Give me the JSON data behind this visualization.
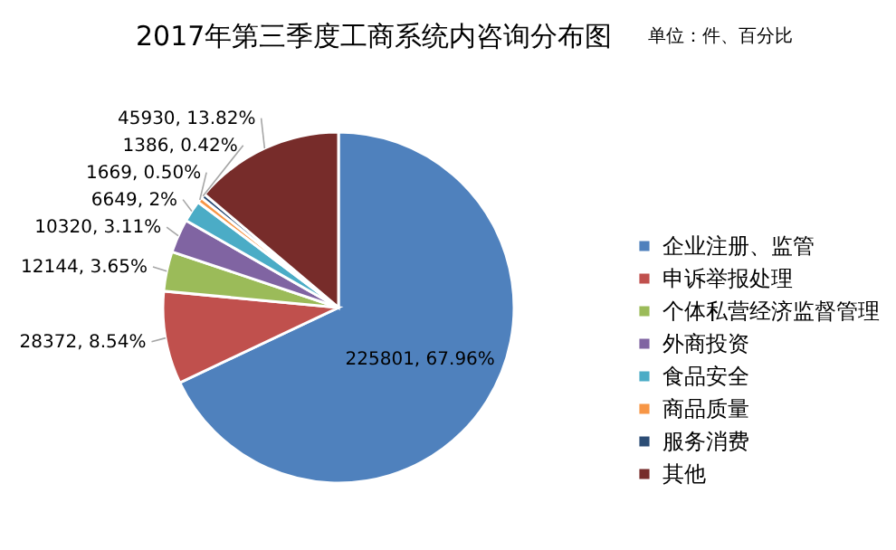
{
  "chart_data": {
    "type": "pie",
    "title": "2017年第三季度工商系统内咨询分布图",
    "subtitle": "单位：件、百分比",
    "categories": [
      "企业注册、监管",
      "申诉举报处理",
      "个体私营经济监督管理",
      "外商投资",
      "食品安全",
      "商品质量",
      "服务消费",
      "其他"
    ],
    "values": [
      225801,
      28372,
      12144,
      10320,
      6649,
      1669,
      1386,
      45930
    ],
    "value_labels": [
      "225801, 67.96%",
      "28372, 8.54%",
      "12144, 3.65%",
      "10320, 3.11%",
      "6649, 2%",
      "1669, 0.50%",
      "1386, 0.42%",
      "45930, 13.82%"
    ],
    "colors": [
      "#4f81bd",
      "#c0504d",
      "#9bbb59",
      "#8064a2",
      "#4bacc6",
      "#f79646",
      "#2c4d75",
      "#772c2a"
    ],
    "legend": "right"
  }
}
